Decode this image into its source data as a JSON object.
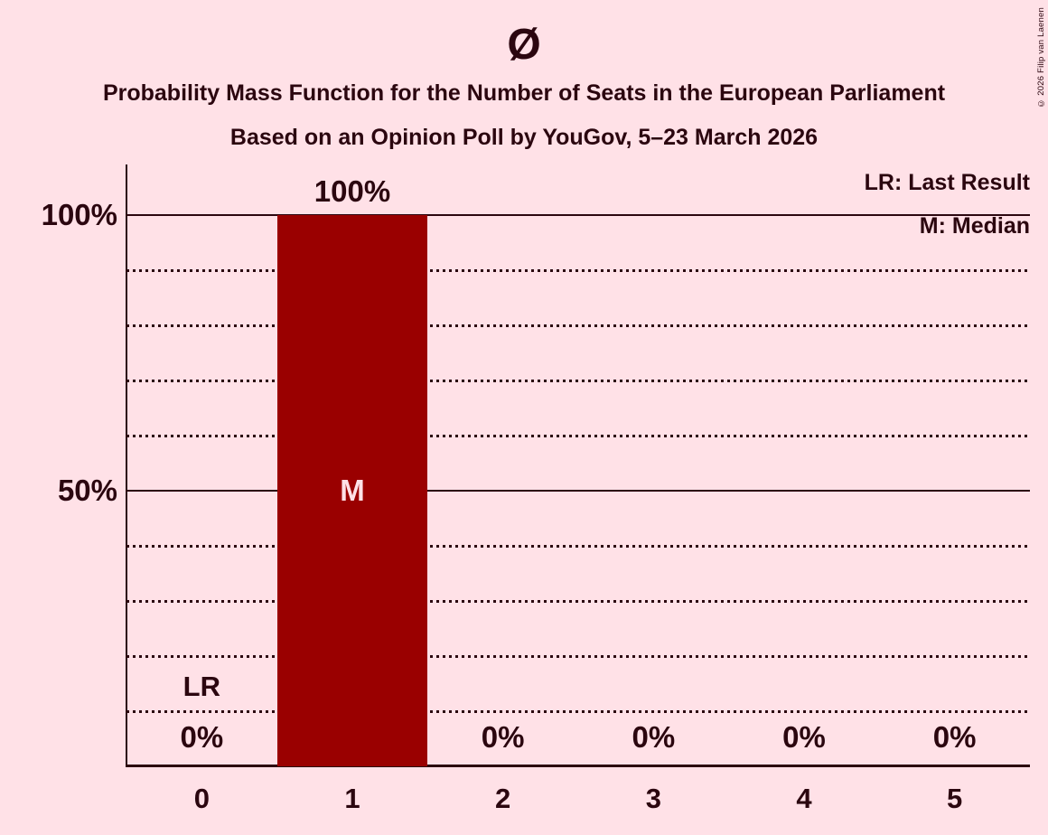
{
  "header": {
    "title": "Ø",
    "subtitle": "Probability Mass Function for the Number of Seats in the European Parliament",
    "poll_info": "Based on an Opinion Poll by YouGov, 5–23 March 2026"
  },
  "copyright": "© 2026 Filip van Laenen",
  "legend": {
    "last_result": "LR: Last Result",
    "median": "M: Median"
  },
  "colors": {
    "background": "#ffe1e7",
    "bar": "#9a0000",
    "text": "#2b060f",
    "bar_label": "#ffe1e7"
  },
  "chart_data": {
    "type": "bar",
    "title": "Ø",
    "subtitle": "Probability Mass Function for the Number of Seats in the European Parliament",
    "source_line": "Based on an Opinion Poll by YouGov, 5–23 March 2026",
    "categories": [
      "0",
      "1",
      "2",
      "3",
      "4",
      "5"
    ],
    "values": [
      0,
      100,
      0,
      0,
      0,
      0
    ],
    "bar_value_labels": [
      "0%",
      "100%",
      "0%",
      "0%",
      "0%",
      "0%"
    ],
    "ylim": [
      0,
      100
    ],
    "y_ticks": [
      {
        "pct": 100,
        "label": "100%"
      },
      {
        "pct": 50,
        "label": "50%"
      }
    ],
    "gridlines": {
      "solid_pct": [
        100,
        50
      ],
      "dotted_pct": [
        90,
        80,
        70,
        60,
        40,
        30,
        20,
        10
      ]
    },
    "annotations": [
      {
        "label": "M",
        "category": "1",
        "at_pct": 50
      },
      {
        "label": "LR",
        "category": "0",
        "at_pct": 10
      }
    ],
    "legend_entries": [
      "LR: Last Result",
      "M: Median"
    ],
    "legend_position": "top-right"
  }
}
